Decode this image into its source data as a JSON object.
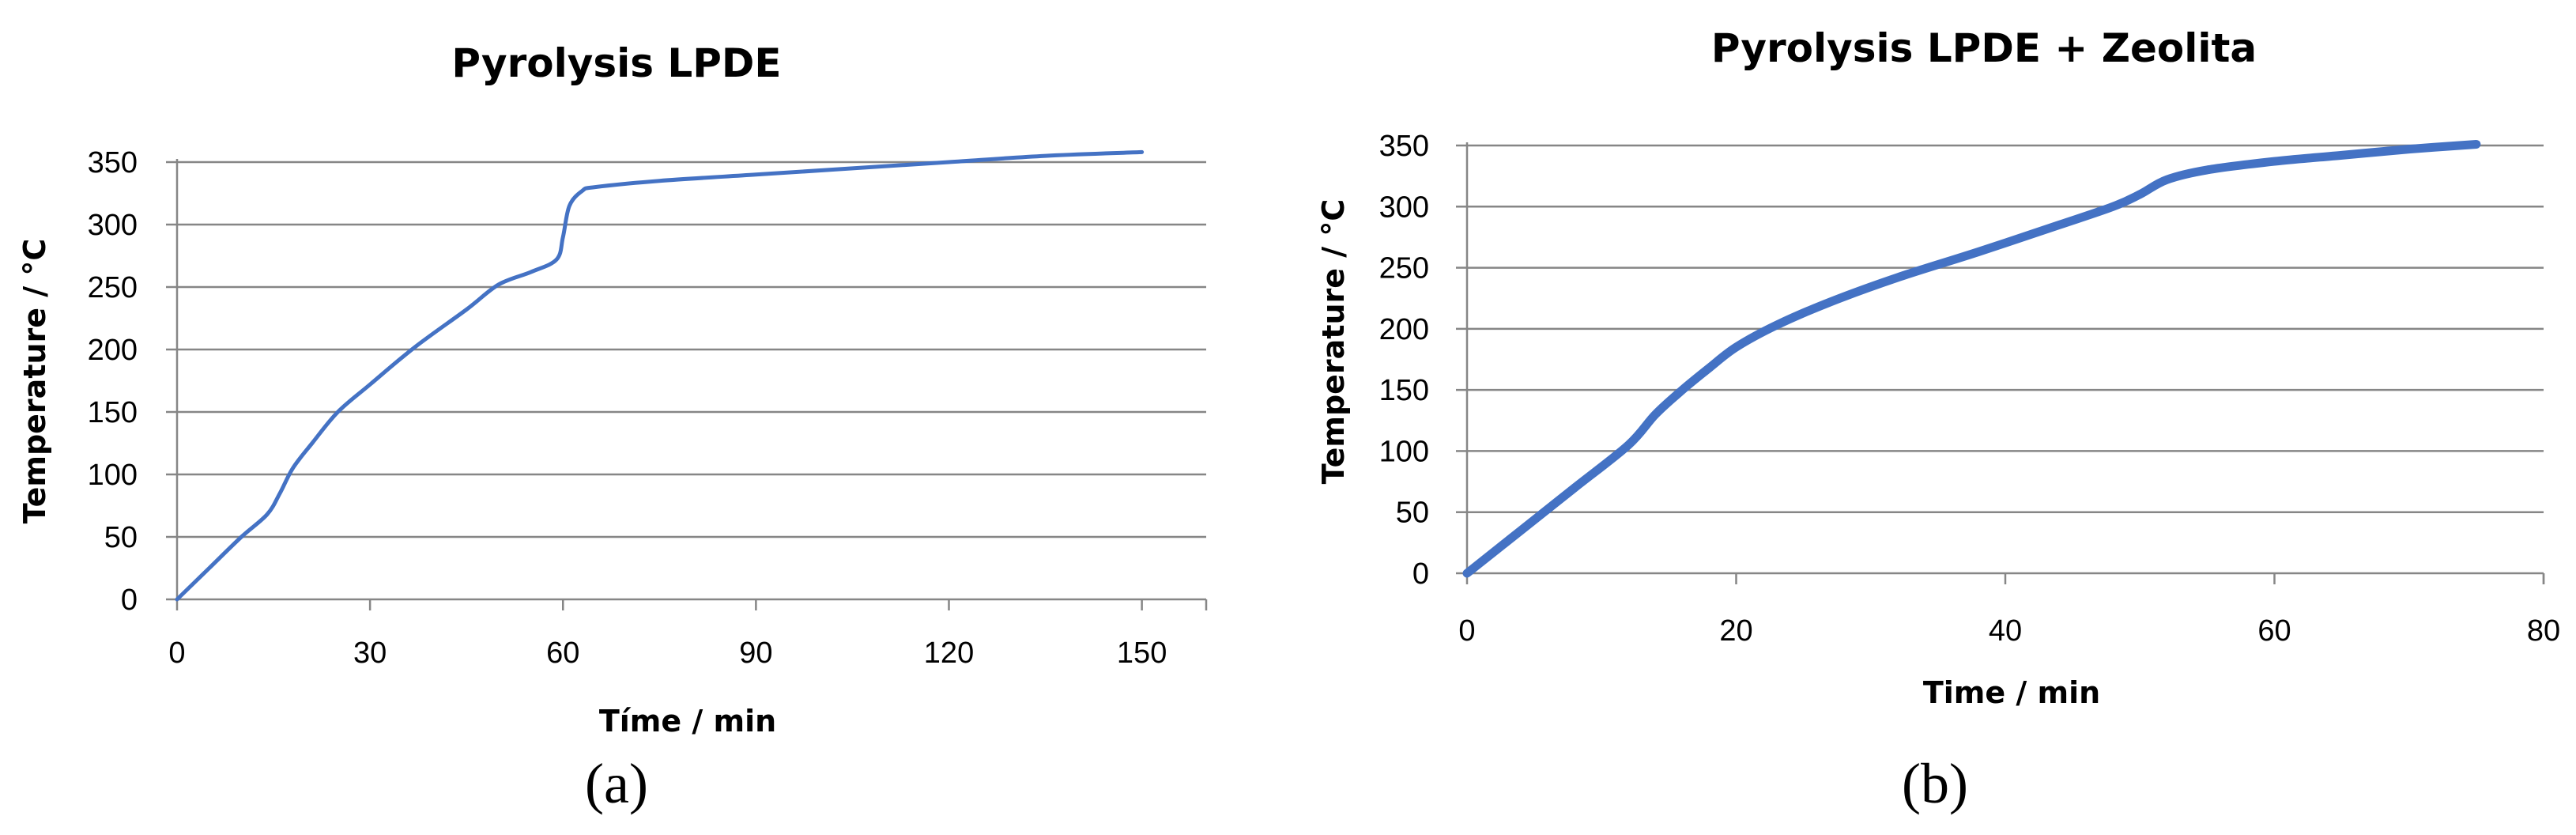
{
  "chart_data": [
    {
      "type": "line",
      "title": "Pyrolysis LPDE",
      "xlabel": "Tíme / min",
      "ylabel": "Temperature / °C",
      "panel_label": "(a)",
      "xlim": [
        0,
        160
      ],
      "ylim": [
        0,
        350
      ],
      "xticks": [
        0,
        30,
        60,
        90,
        120,
        150
      ],
      "yticks": [
        0,
        50,
        100,
        150,
        200,
        250,
        300,
        350
      ],
      "grid": "horizontal",
      "line_color": "#4472C4",
      "series": [
        {
          "x": [
            0,
            5,
            10,
            14,
            16,
            18,
            21,
            25,
            30,
            37,
            45,
            50,
            55,
            59,
            60,
            61,
            63,
            65,
            75,
            90,
            105,
            120,
            135,
            150
          ],
          "y": [
            0,
            25,
            50,
            68,
            85,
            105,
            125,
            150,
            172,
            202,
            232,
            252,
            262,
            272,
            290,
            315,
            327,
            330,
            335,
            340,
            345,
            350,
            355,
            358
          ]
        }
      ]
    },
    {
      "type": "line",
      "title": "Pyrolysis LPDE + Zeolita",
      "xlabel": "Time / min",
      "ylabel": "Temperature / °C",
      "panel_label": "(b)",
      "xlim": [
        0,
        80
      ],
      "ylim": [
        0,
        350
      ],
      "xticks": [
        0,
        20,
        40,
        60,
        80
      ],
      "yticks": [
        0,
        50,
        100,
        150,
        200,
        250,
        300,
        350
      ],
      "grid": "horizontal",
      "line_color": "#4472C4",
      "series": [
        {
          "x": [
            0,
            4,
            8,
            12,
            14,
            16,
            18,
            20,
            23,
            27,
            32,
            38,
            44,
            48,
            50,
            52,
            55,
            60,
            65,
            70,
            75
          ],
          "y": [
            0,
            35,
            70,
            105,
            130,
            150,
            168,
            185,
            203,
            222,
            242,
            263,
            285,
            300,
            310,
            322,
            330,
            337,
            342,
            347,
            351
          ]
        }
      ]
    }
  ]
}
